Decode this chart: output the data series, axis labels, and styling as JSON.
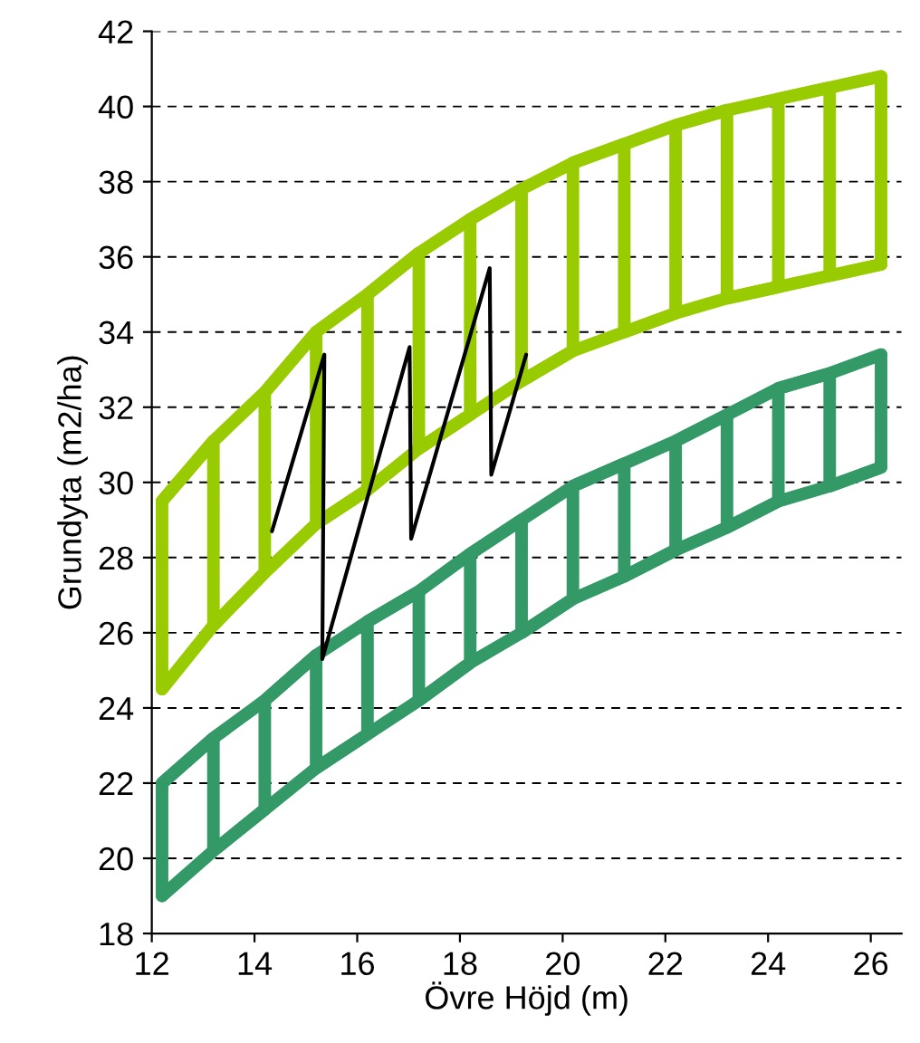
{
  "chart_data": {
    "type": "line",
    "xlabel": "Övre Höjd (m)",
    "ylabel": "Grundyta (m2/ha)",
    "xlim": [
      12,
      26.6
    ],
    "xticks": [
      12,
      14,
      16,
      18,
      20,
      22,
      24,
      26
    ],
    "ylim": [
      18,
      42
    ],
    "yticks": [
      18,
      20,
      22,
      24,
      26,
      28,
      30,
      32,
      34,
      36,
      38,
      40,
      42
    ],
    "grid": "y",
    "line_style": "solid",
    "marker": "none",
    "series": [
      {
        "color": "#99cc00",
        "x": [
          12.2,
          13.2,
          14.2,
          15.2,
          16.2,
          17.2,
          18.2,
          19.2,
          20.2,
          21.2,
          22.2,
          23.2,
          24.2,
          25.2,
          26.2
        ],
        "values": [
          29.5,
          31.1,
          32.4,
          34.0,
          35.0,
          36.1,
          37.0,
          37.8,
          38.5,
          39.0,
          39.5,
          39.9,
          40.2,
          40.5,
          40.8
        ]
      },
      {
        "color": "#99cc00",
        "x": [
          12.2,
          13.2,
          14.2,
          15.2,
          16.2,
          17.2,
          18.2,
          19.2,
          20.2,
          21.2,
          22.2,
          23.2,
          24.2,
          25.2,
          26.2
        ],
        "values": [
          24.5,
          26.2,
          27.6,
          28.9,
          29.8,
          30.9,
          31.8,
          32.7,
          33.5,
          34.0,
          34.5,
          34.9,
          35.2,
          35.5,
          35.8
        ]
      },
      {
        "color": "#99cc00",
        "x": [
          12.2,
          12.2,
          13.2,
          13.2,
          14.2,
          14.2,
          15.2,
          15.2,
          16.2,
          16.2,
          17.2,
          17.2,
          18.2,
          18.2,
          19.2,
          19.2,
          20.2,
          20.2,
          21.2,
          21.2,
          22.2,
          22.2,
          23.2,
          23.2,
          24.2,
          24.2,
          25.2,
          25.2,
          26.2,
          26.2
        ],
        "values": [
          24.5,
          29.5,
          31.1,
          26.2,
          27.6,
          32.4,
          34.0,
          28.9,
          29.8,
          35.0,
          36.1,
          30.9,
          31.8,
          37.0,
          37.8,
          32.7,
          33.5,
          38.5,
          39.0,
          34.0,
          34.5,
          39.5,
          39.9,
          34.9,
          35.2,
          40.2,
          40.5,
          35.5,
          35.8,
          40.8
        ]
      },
      {
        "color": "#339966",
        "x": [
          12.2,
          13.2,
          14.2,
          15.2,
          16.2,
          17.2,
          18.2,
          19.2,
          20.2,
          21.2,
          22.2,
          23.2,
          24.2,
          25.2,
          26.2
        ],
        "values": [
          22.0,
          23.2,
          24.2,
          25.4,
          26.3,
          27.1,
          28.1,
          29.0,
          29.9,
          30.5,
          31.1,
          31.8,
          32.5,
          32.9,
          33.4
        ]
      },
      {
        "color": "#339966",
        "x": [
          12.2,
          13.2,
          14.2,
          15.2,
          16.2,
          17.2,
          18.2,
          19.2,
          20.2,
          21.2,
          22.2,
          23.2,
          24.2,
          25.2,
          26.2
        ],
        "values": [
          19.0,
          20.2,
          21.3,
          22.4,
          23.3,
          24.2,
          25.2,
          26.0,
          26.9,
          27.5,
          28.2,
          28.8,
          29.5,
          29.9,
          30.4
        ]
      },
      {
        "color": "#339966",
        "x": [
          12.2,
          12.2,
          13.2,
          13.2,
          14.2,
          14.2,
          15.2,
          15.2,
          16.2,
          16.2,
          17.2,
          17.2,
          18.2,
          18.2,
          19.2,
          19.2,
          20.2,
          20.2,
          21.2,
          21.2,
          22.2,
          22.2,
          23.2,
          23.2,
          24.2,
          24.2,
          25.2,
          25.2,
          26.2,
          26.2
        ],
        "values": [
          19.0,
          22.0,
          23.2,
          20.2,
          21.3,
          24.2,
          25.4,
          22.4,
          23.3,
          26.3,
          27.1,
          24.2,
          25.2,
          28.1,
          29.0,
          26.0,
          26.9,
          29.9,
          30.5,
          27.5,
          28.2,
          31.1,
          31.8,
          28.8,
          29.5,
          32.5,
          32.9,
          29.9,
          30.4,
          33.4
        ]
      },
      {
        "color": "#000000",
        "x": [
          14.34,
          15.36,
          15.32,
          17.02,
          17.05,
          18.58,
          18.61,
          19.29
        ],
        "values": [
          28.7,
          33.4,
          25.3,
          33.6,
          28.5,
          35.7,
          30.2,
          33.4
        ]
      }
    ]
  }
}
